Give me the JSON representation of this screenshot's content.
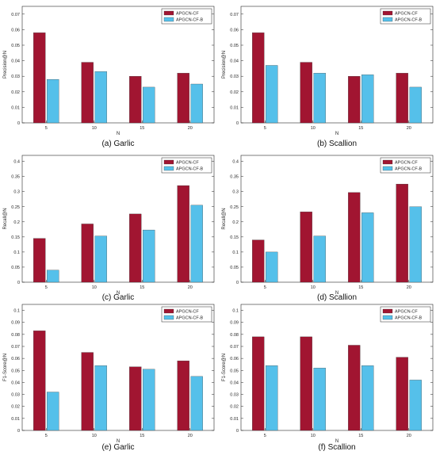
{
  "legend_labels": [
    "APGCN-CF",
    "APGCN-CF-B"
  ],
  "colors": {
    "series1": "#A11531",
    "series2": "#55C0EA"
  },
  "chart_data": [
    {
      "type": "bar",
      "caption": "(a) Garlic",
      "xlabel": "N",
      "ylabel": "Precision@N",
      "categories": [
        "5",
        "10",
        "15",
        "20"
      ],
      "ylim": [
        0,
        0.075
      ],
      "yticks": [
        "0",
        "0.01",
        "0.02",
        "0.03",
        "0.04",
        "0.05",
        "0.06",
        "0.07"
      ],
      "series": [
        {
          "name": "APGCN-CF",
          "values": [
            0.058,
            0.039,
            0.03,
            0.032
          ]
        },
        {
          "name": "APGCN-CF-B",
          "values": [
            0.028,
            0.033,
            0.023,
            0.025
          ]
        }
      ],
      "legend": "top-right",
      "grid": false
    },
    {
      "type": "bar",
      "caption": "(b) Scallion",
      "xlabel": "N",
      "ylabel": "Precision@N",
      "categories": [
        "5",
        "10",
        "15",
        "20"
      ],
      "ylim": [
        0,
        0.075
      ],
      "yticks": [
        "0",
        "0.01",
        "0.02",
        "0.03",
        "0.04",
        "0.05",
        "0.06",
        "0.07"
      ],
      "series": [
        {
          "name": "APGCN-CF",
          "values": [
            0.058,
            0.039,
            0.03,
            0.032
          ]
        },
        {
          "name": "APGCN-CF-B",
          "values": [
            0.037,
            0.032,
            0.031,
            0.023
          ]
        }
      ],
      "legend": "top-right",
      "grid": false
    },
    {
      "type": "bar",
      "caption": "(c) Garlic",
      "xlabel": "N",
      "ylabel": "Recall@N",
      "categories": [
        "5",
        "10",
        "15",
        "20"
      ],
      "ylim": [
        0,
        0.42
      ],
      "yticks": [
        "0",
        "0.05",
        "0.1",
        "0.15",
        "0.2",
        "0.25",
        "0.3",
        "0.35",
        "0.4"
      ],
      "series": [
        {
          "name": "APGCN-CF",
          "values": [
            0.145,
            0.193,
            0.226,
            0.32
          ]
        },
        {
          "name": "APGCN-CF-B",
          "values": [
            0.04,
            0.153,
            0.173,
            0.255
          ]
        }
      ],
      "legend": "top-right",
      "grid": false
    },
    {
      "type": "bar",
      "caption": "(d) Scallion",
      "xlabel": "N",
      "ylabel": "Recall@N",
      "categories": [
        "5",
        "10",
        "15",
        "20"
      ],
      "ylim": [
        0,
        0.42
      ],
      "yticks": [
        "0",
        "0.05",
        "0.1",
        "0.15",
        "0.2",
        "0.25",
        "0.3",
        "0.35",
        "0.4"
      ],
      "series": [
        {
          "name": "APGCN-CF",
          "values": [
            0.14,
            0.233,
            0.297,
            0.325
          ]
        },
        {
          "name": "APGCN-CF-B",
          "values": [
            0.1,
            0.153,
            0.23,
            0.25
          ]
        }
      ],
      "legend": "top-right",
      "grid": false
    },
    {
      "type": "bar",
      "caption": "(e) Garlic",
      "xlabel": "N",
      "ylabel": "F1-Score@N",
      "categories": [
        "5",
        "10",
        "15",
        "20"
      ],
      "ylim": [
        0,
        0.105
      ],
      "yticks": [
        "0",
        "0.01",
        "0.02",
        "0.03",
        "0.04",
        "0.05",
        "0.06",
        "0.07",
        "0.08",
        "0.09",
        "0.1"
      ],
      "series": [
        {
          "name": "APGCN-CF",
          "values": [
            0.083,
            0.065,
            0.053,
            0.058
          ]
        },
        {
          "name": "APGCN-CF-B",
          "values": [
            0.032,
            0.054,
            0.051,
            0.045
          ]
        }
      ],
      "legend": "top-right",
      "grid": false
    },
    {
      "type": "bar",
      "caption": "(f) Scallion",
      "xlabel": "N",
      "ylabel": "F1-Score@N",
      "categories": [
        "5",
        "10",
        "15",
        "20"
      ],
      "ylim": [
        0,
        0.105
      ],
      "yticks": [
        "0",
        "0.01",
        "0.02",
        "0.03",
        "0.04",
        "0.05",
        "0.06",
        "0.07",
        "0.08",
        "0.09",
        "0.1"
      ],
      "series": [
        {
          "name": "APGCN-CF",
          "values": [
            0.078,
            0.078,
            0.071,
            0.061
          ]
        },
        {
          "name": "APGCN-CF-B",
          "values": [
            0.054,
            0.052,
            0.054,
            0.042
          ]
        }
      ],
      "legend": "top-right",
      "grid": false
    }
  ]
}
